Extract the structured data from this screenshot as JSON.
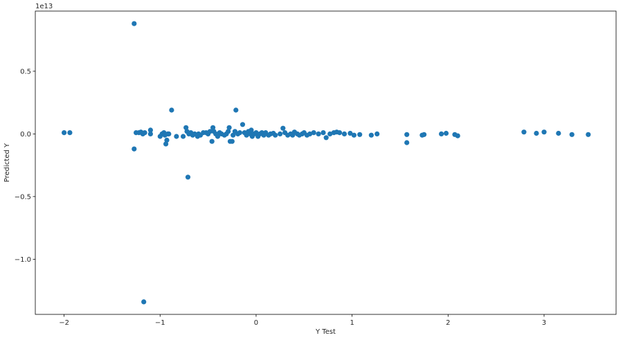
{
  "chart_data": {
    "type": "scatter",
    "title": "",
    "xlabel": "Y Test",
    "ylabel": "Predicted Y",
    "y_scale_note": "1e13",
    "xlim": [
      -2.3,
      3.75
    ],
    "ylim": [
      -1.44,
      0.98
    ],
    "xticks": [
      -2,
      -1,
      0,
      1,
      2,
      3
    ],
    "xtick_labels": [
      "−2",
      "−1",
      "0",
      "1",
      "2",
      "3"
    ],
    "yticks": [
      0.5,
      0.0,
      -0.5,
      -1.0
    ],
    "ytick_labels": [
      "0.5",
      "0.0",
      "−0.5",
      "−1.0"
    ],
    "grid": false,
    "color": "#1f77b4",
    "series": [
      {
        "points": [
          [
            -2.0,
            0.01
          ],
          [
            -1.94,
            0.01
          ],
          [
            -1.27,
            0.88
          ],
          [
            -1.27,
            -0.12
          ],
          [
            -1.25,
            0.01
          ],
          [
            -1.22,
            0.01
          ],
          [
            -1.2,
            0.015
          ],
          [
            -1.18,
            0.0
          ],
          [
            -1.17,
            -1.34
          ],
          [
            -1.16,
            0.01
          ],
          [
            -1.1,
            0.03
          ],
          [
            -1.1,
            0.0
          ],
          [
            -1.0,
            -0.02
          ],
          [
            -0.98,
            0.0
          ],
          [
            -0.96,
            0.01
          ],
          [
            -0.95,
            -0.01
          ],
          [
            -0.94,
            -0.08
          ],
          [
            -0.93,
            -0.05
          ],
          [
            -0.92,
            0.0
          ],
          [
            -0.91,
            0.0
          ],
          [
            -0.88,
            0.19
          ],
          [
            -0.83,
            -0.02
          ],
          [
            -0.76,
            -0.02
          ],
          [
            -0.73,
            0.05
          ],
          [
            -0.72,
            0.02
          ],
          [
            -0.71,
            -0.345
          ],
          [
            -0.7,
            0.0
          ],
          [
            -0.68,
            0.01
          ],
          [
            -0.66,
            -0.01
          ],
          [
            -0.64,
            0.0
          ],
          [
            -0.61,
            -0.02
          ],
          [
            -0.6,
            0.0
          ],
          [
            -0.58,
            -0.01
          ],
          [
            -0.55,
            0.01
          ],
          [
            -0.52,
            0.01
          ],
          [
            -0.5,
            0.0
          ],
          [
            -0.48,
            0.02
          ],
          [
            -0.46,
            -0.06
          ],
          [
            -0.45,
            0.05
          ],
          [
            -0.44,
            0.02
          ],
          [
            -0.42,
            0.0
          ],
          [
            -0.4,
            -0.02
          ],
          [
            -0.38,
            0.01
          ],
          [
            -0.36,
            0.0
          ],
          [
            -0.33,
            -0.01
          ],
          [
            -0.31,
            0.0
          ],
          [
            -0.29,
            0.02
          ],
          [
            -0.28,
            0.05
          ],
          [
            -0.27,
            -0.06
          ],
          [
            -0.25,
            -0.06
          ],
          [
            -0.24,
            -0.01
          ],
          [
            -0.22,
            0.02
          ],
          [
            -0.21,
            0.19
          ],
          [
            -0.19,
            0.0
          ],
          [
            -0.17,
            0.01
          ],
          [
            -0.14,
            0.075
          ],
          [
            -0.12,
            0.01
          ],
          [
            -0.1,
            -0.01
          ],
          [
            -0.08,
            0.02
          ],
          [
            -0.06,
            0.0
          ],
          [
            -0.05,
            0.03
          ],
          [
            -0.04,
            -0.02
          ],
          [
            -0.02,
            0.0
          ],
          [
            0.0,
            0.01
          ],
          [
            0.02,
            -0.02
          ],
          [
            0.04,
            0.0
          ],
          [
            0.06,
            0.01
          ],
          [
            0.08,
            -0.01
          ],
          [
            0.1,
            0.01
          ],
          [
            0.13,
            -0.01
          ],
          [
            0.15,
            0.0
          ],
          [
            0.18,
            0.005
          ],
          [
            0.2,
            -0.01
          ],
          [
            0.25,
            0.0
          ],
          [
            0.28,
            0.045
          ],
          [
            0.3,
            0.01
          ],
          [
            0.33,
            -0.01
          ],
          [
            0.36,
            0.0
          ],
          [
            0.38,
            -0.01
          ],
          [
            0.4,
            0.015
          ],
          [
            0.43,
            0.0
          ],
          [
            0.45,
            -0.01
          ],
          [
            0.48,
            0.0
          ],
          [
            0.5,
            0.01
          ],
          [
            0.53,
            -0.01
          ],
          [
            0.56,
            0.0
          ],
          [
            0.6,
            0.01
          ],
          [
            0.65,
            0.0
          ],
          [
            0.7,
            0.01
          ],
          [
            0.73,
            -0.03
          ],
          [
            0.77,
            0.0
          ],
          [
            0.81,
            0.01
          ],
          [
            0.84,
            0.015
          ],
          [
            0.87,
            0.01
          ],
          [
            0.92,
            0.0
          ],
          [
            0.98,
            0.005
          ],
          [
            1.02,
            -0.01
          ],
          [
            1.08,
            -0.005
          ],
          [
            1.2,
            -0.01
          ],
          [
            1.26,
            0.0
          ],
          [
            1.57,
            -0.07
          ],
          [
            1.57,
            -0.005
          ],
          [
            1.73,
            -0.01
          ],
          [
            1.75,
            -0.005
          ],
          [
            1.93,
            0.0
          ],
          [
            1.98,
            0.005
          ],
          [
            2.07,
            -0.005
          ],
          [
            2.1,
            -0.015
          ],
          [
            2.79,
            0.015
          ],
          [
            2.92,
            0.005
          ],
          [
            3.0,
            0.015
          ],
          [
            3.15,
            0.005
          ],
          [
            3.29,
            -0.005
          ],
          [
            3.46,
            -0.005
          ]
        ]
      }
    ]
  }
}
